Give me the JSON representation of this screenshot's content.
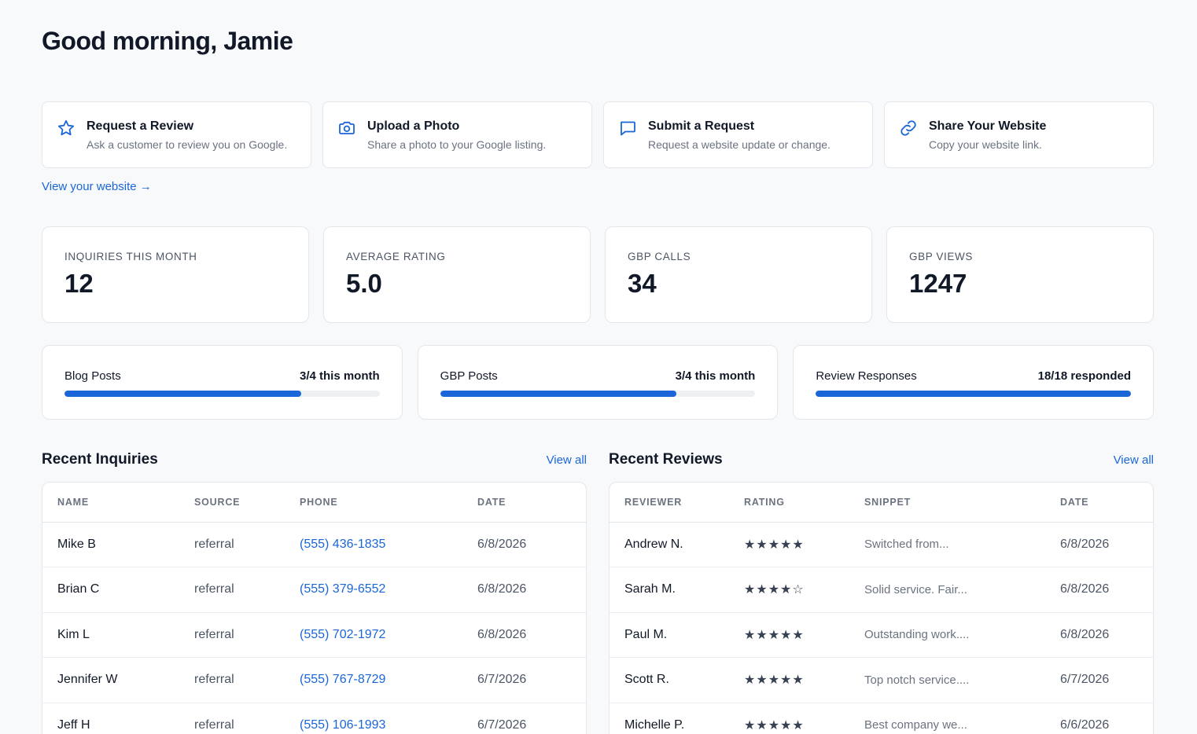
{
  "greeting": "Good morning, Jamie",
  "actions": [
    {
      "title": "Request a Review",
      "sub": "Ask a customer to review you on Google.",
      "icon": "star-icon"
    },
    {
      "title": "Upload a Photo",
      "sub": "Share a photo to your Google listing.",
      "icon": "camera-icon"
    },
    {
      "title": "Submit a Request",
      "sub": "Request a website update or change.",
      "icon": "message-icon"
    },
    {
      "title": "Share Your Website",
      "sub": "Copy your website link.",
      "icon": "link-icon"
    }
  ],
  "view_website": "View your website →",
  "stats": [
    {
      "label": "INQUIRIES THIS MONTH",
      "value": "12"
    },
    {
      "label": "AVERAGE RATING",
      "value": "5.0"
    },
    {
      "label": "GBP CALLS",
      "value": "34"
    },
    {
      "label": "GBP VIEWS",
      "value": "1247"
    }
  ],
  "progress": [
    {
      "name": "Blog Posts",
      "count": "3/4 this month",
      "fraction": 0.75
    },
    {
      "name": "GBP Posts",
      "count": "3/4 this month",
      "fraction": 0.75
    },
    {
      "name": "Review Responses",
      "count": "18/18 responded",
      "fraction": 1.0
    }
  ],
  "inquiries": {
    "title": "Recent Inquiries",
    "view_all": "View all",
    "columns": [
      "NAME",
      "SOURCE",
      "PHONE",
      "DATE"
    ],
    "rows": [
      {
        "name": "Mike B",
        "source": "referral",
        "phone": "(555) 436-1835",
        "date": "6/8/2026"
      },
      {
        "name": "Brian C",
        "source": "referral",
        "phone": "(555) 379-6552",
        "date": "6/8/2026"
      },
      {
        "name": "Kim L",
        "source": "referral",
        "phone": "(555) 702-1972",
        "date": "6/8/2026"
      },
      {
        "name": "Jennifer W",
        "source": "referral",
        "phone": "(555) 767-8729",
        "date": "6/7/2026"
      },
      {
        "name": "Jeff H",
        "source": "referral",
        "phone": "(555) 106-1993",
        "date": "6/7/2026"
      }
    ]
  },
  "reviews": {
    "title": "Recent Reviews",
    "view_all": "View all",
    "columns": [
      "REVIEWER",
      "RATING",
      "SNIPPET",
      "DATE"
    ],
    "rows": [
      {
        "reviewer": "Andrew N.",
        "rating": "★★★★★",
        "snippet": "Switched from...",
        "date": "6/8/2026"
      },
      {
        "reviewer": "Sarah M.",
        "rating": "★★★★☆",
        "snippet": "Solid service. Fair...",
        "date": "6/8/2026"
      },
      {
        "reviewer": "Paul M.",
        "rating": "★★★★★",
        "snippet": "Outstanding work....",
        "date": "6/8/2026"
      },
      {
        "reviewer": "Scott R.",
        "rating": "★★★★★",
        "snippet": "Top notch service....",
        "date": "6/7/2026"
      },
      {
        "reviewer": "Michelle P.",
        "rating": "★★★★★",
        "snippet": "Best company we...",
        "date": "6/6/2026"
      }
    ]
  },
  "colors": {
    "accent": "#1a66d9",
    "background": "#f8f9fb",
    "card": "#ffffff",
    "border": "#e3e6eb"
  }
}
